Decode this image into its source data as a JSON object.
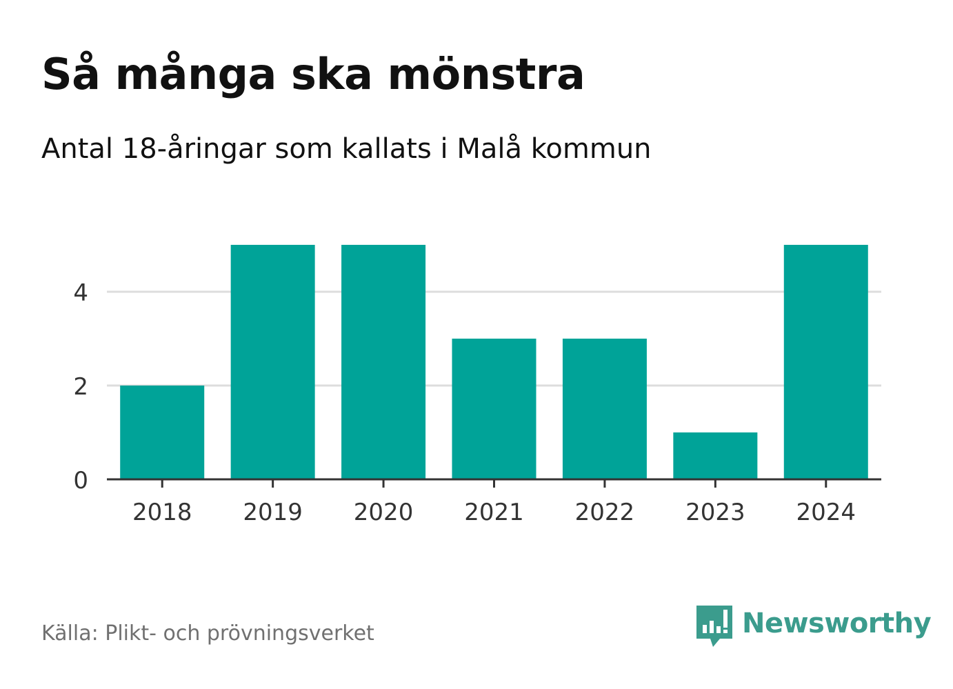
{
  "title": "Så många ska mönstra",
  "subtitle": "Antal 18-åringar som kallats i Malå kommun",
  "source": "Källa: Plikt- och prövningsverket",
  "brand": {
    "name": "Newsworthy",
    "color": "#3b9c8d"
  },
  "colors": {
    "bar": "#00a398",
    "grid": "#dddddd",
    "axis": "#333333",
    "tick_label": "#333333"
  },
  "chart_data": {
    "type": "bar",
    "categories": [
      "2018",
      "2019",
      "2020",
      "2021",
      "2022",
      "2023",
      "2024"
    ],
    "values": [
      2,
      5,
      5,
      3,
      3,
      1,
      5
    ],
    "y_ticks": [
      "0",
      "2",
      "4"
    ],
    "ylim": [
      0,
      5.5
    ],
    "grid": true
  }
}
